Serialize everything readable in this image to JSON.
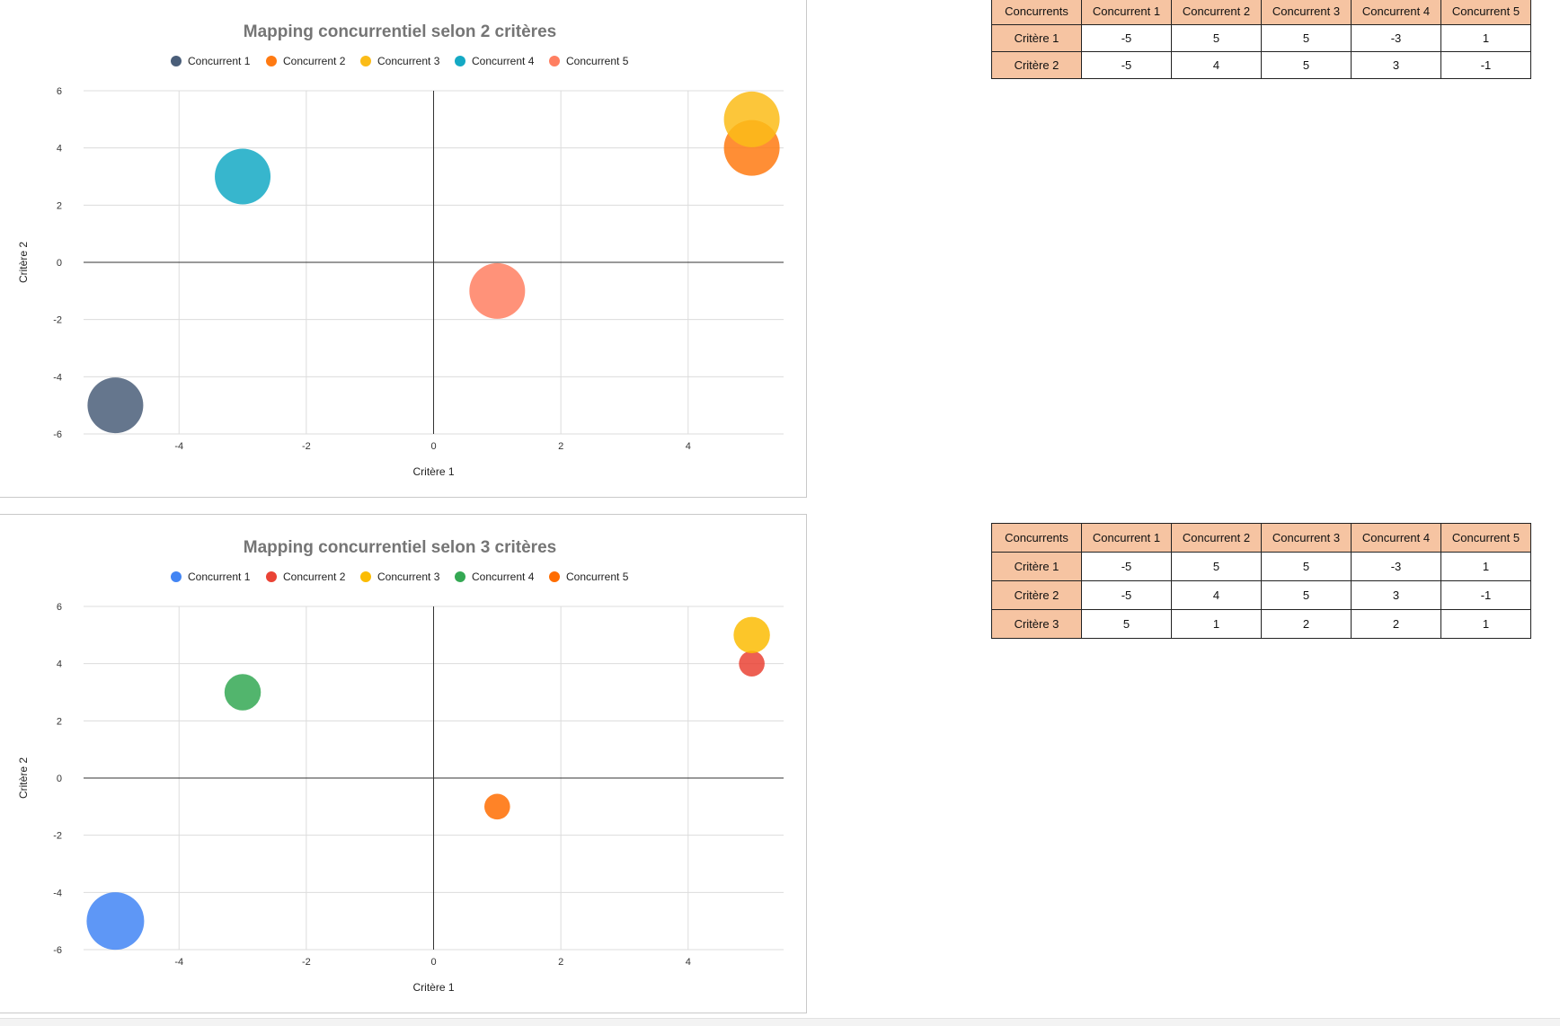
{
  "chart_data": [
    {
      "type": "bubble",
      "title": "Mapping concurrentiel selon 2 critères",
      "xlabel": "Critère 1",
      "ylabel": "Critère 2",
      "xlim": [
        -5.5,
        5.5
      ],
      "ylim": [
        -6,
        6
      ],
      "xticks": [
        -4,
        -2,
        0,
        2,
        4
      ],
      "yticks": [
        -6,
        -4,
        -2,
        0,
        2,
        4,
        6
      ],
      "grid": true,
      "legend_position": "top",
      "series": [
        {
          "name": "Concurrent 1",
          "x": -5,
          "y": -5,
          "size": 1,
          "color": "#4a5e79"
        },
        {
          "name": "Concurrent 2",
          "x": 5,
          "y": 4,
          "size": 1,
          "color": "#ff7a12"
        },
        {
          "name": "Concurrent 3",
          "x": 5,
          "y": 5,
          "size": 1,
          "color": "#fbbc18"
        },
        {
          "name": "Concurrent 4",
          "x": -3,
          "y": 3,
          "size": 1,
          "color": "#14a9c4"
        },
        {
          "name": "Concurrent 5",
          "x": 1,
          "y": -1,
          "size": 1,
          "color": "#ff7f61"
        }
      ]
    },
    {
      "type": "bubble",
      "title": "Mapping concurrentiel selon 3 critères",
      "xlabel": "Critère 1",
      "ylabel": "Critère 2",
      "xlim": [
        -5.5,
        5.5
      ],
      "ylim": [
        -6,
        6
      ],
      "xticks": [
        -4,
        -2,
        0,
        2,
        4
      ],
      "yticks": [
        -6,
        -4,
        -2,
        0,
        2,
        4,
        6
      ],
      "grid": true,
      "legend_position": "top",
      "series": [
        {
          "name": "Concurrent 1",
          "x": -5,
          "y": -5,
          "size": 5,
          "color": "#4285f4"
        },
        {
          "name": "Concurrent 2",
          "x": 5,
          "y": 4,
          "size": 1,
          "color": "#ea4335"
        },
        {
          "name": "Concurrent 3",
          "x": 5,
          "y": 5,
          "size": 2,
          "color": "#fbbc04"
        },
        {
          "name": "Concurrent 4",
          "x": -3,
          "y": 3,
          "size": 2,
          "color": "#34a853"
        },
        {
          "name": "Concurrent 5",
          "x": 1,
          "y": -1,
          "size": 1,
          "color": "#ff6d01"
        }
      ]
    }
  ],
  "tables": [
    {
      "header": [
        "Concurrents",
        "Concurrent 1",
        "Concurrent 2",
        "Concurrent 3",
        "Concurrent 4",
        "Concurrent 5"
      ],
      "rows": [
        [
          "Critère 1",
          "-5",
          "5",
          "5",
          "-3",
          "1"
        ],
        [
          "Critère 2",
          "-5",
          "4",
          "5",
          "3",
          "-1"
        ]
      ]
    },
    {
      "header": [
        "Concurrents",
        "Concurrent 1",
        "Concurrent 2",
        "Concurrent 3",
        "Concurrent 4",
        "Concurrent 5"
      ],
      "rows": [
        [
          "Critère 1",
          "-5",
          "5",
          "5",
          "-3",
          "1"
        ],
        [
          "Critère 2",
          "-5",
          "4",
          "5",
          "3",
          "-1"
        ],
        [
          "Critère 3",
          "5",
          "1",
          "2",
          "2",
          "1"
        ]
      ]
    }
  ]
}
